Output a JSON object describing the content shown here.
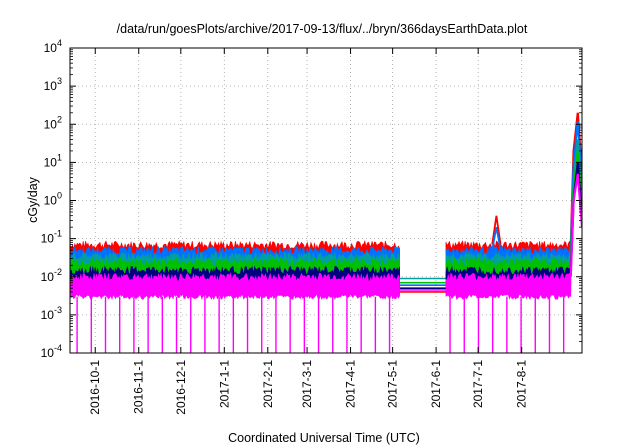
{
  "chart_data": {
    "type": "line",
    "title": "/data/run/goesPlots/archive/2017-09-13/flux/../bryn/366daysEarthData.plot",
    "xlabel": "Coordinated Universal Time (UTC)",
    "ylabel": "cGy/day",
    "x_range": [
      "2016-09-13",
      "2017-09-13"
    ],
    "xticks": [
      "2016-10-1",
      "2016-11-1",
      "2016-12-1",
      "2017-1-1",
      "2017-2-1",
      "2017-3-1",
      "2017-4-1",
      "2017-5-1",
      "2017-6-1",
      "2017-7-1",
      "2017-8-1"
    ],
    "y_scale": "log",
    "ylim": [
      0.0001,
      10000
    ],
    "yticks": [
      {
        "value": 0.0001,
        "base": "10",
        "exp": "-4"
      },
      {
        "value": 0.001,
        "base": "10",
        "exp": "-3"
      },
      {
        "value": 0.01,
        "base": "10",
        "exp": "-2"
      },
      {
        "value": 0.1,
        "base": "10",
        "exp": "-1"
      },
      {
        "value": 1,
        "base": "10",
        "exp": "0"
      },
      {
        "value": 10,
        "base": "10",
        "exp": "1"
      },
      {
        "value": 100,
        "base": "10",
        "exp": "2"
      },
      {
        "value": 1000,
        "base": "10",
        "exp": "3"
      },
      {
        "value": 10000,
        "base": "10",
        "exp": "4"
      }
    ],
    "grid": true,
    "data_gap": [
      "2017-05-06",
      "2017-06-08"
    ],
    "series": [
      {
        "color": "#ff0000",
        "baseline": 0.07,
        "gap_level": 0.004,
        "points": [
          [
            "2016-09-13",
            0.07
          ],
          [
            "2017-05-06",
            0.07
          ],
          [
            "2017-06-08",
            0.07
          ],
          [
            "2017-07-11",
            0.07
          ],
          [
            "2017-07-14",
            0.4
          ],
          [
            "2017-07-17",
            0.07
          ],
          [
            "2017-09-05",
            0.07
          ],
          [
            "2017-09-07",
            20
          ],
          [
            "2017-09-10",
            200
          ],
          [
            "2017-09-13",
            5
          ]
        ]
      },
      {
        "color": "#0072ff",
        "baseline": 0.05,
        "gap_level": 0.006,
        "points": [
          [
            "2016-09-13",
            0.05
          ],
          [
            "2017-05-06",
            0.05
          ],
          [
            "2017-06-08",
            0.05
          ],
          [
            "2017-07-11",
            0.05
          ],
          [
            "2017-07-14",
            0.2
          ],
          [
            "2017-07-17",
            0.05
          ],
          [
            "2017-09-05",
            0.05
          ],
          [
            "2017-09-07",
            8
          ],
          [
            "2017-09-10",
            120
          ],
          [
            "2017-09-13",
            3
          ]
        ]
      },
      {
        "color": "#00a0a0",
        "baseline": 0.035,
        "gap_level": 0.009,
        "points": [
          [
            "2016-09-13",
            0.035
          ],
          [
            "2017-05-06",
            0.035
          ],
          [
            "2017-06-08",
            0.035
          ],
          [
            "2017-09-05",
            0.035
          ],
          [
            "2017-09-07",
            3
          ],
          [
            "2017-09-10",
            40
          ],
          [
            "2017-09-13",
            1
          ]
        ]
      },
      {
        "color": "#00c000",
        "baseline": 0.025,
        "gap_level": 0.007,
        "points": [
          [
            "2016-09-13",
            0.025
          ],
          [
            "2017-05-06",
            0.025
          ],
          [
            "2017-06-08",
            0.025
          ],
          [
            "2017-09-05",
            0.025
          ],
          [
            "2017-09-07",
            2
          ],
          [
            "2017-09-10",
            20
          ],
          [
            "2017-09-13",
            0.5
          ]
        ]
      },
      {
        "color": "#000080",
        "baseline": 0.015,
        "gap_level": 0.005,
        "points": [
          [
            "2016-09-13",
            0.015
          ],
          [
            "2017-05-06",
            0.015
          ],
          [
            "2017-06-08",
            0.015
          ],
          [
            "2017-09-05",
            0.015
          ],
          [
            "2017-09-07",
            1
          ],
          [
            "2017-09-10",
            10
          ],
          [
            "2017-09-13",
            0.3
          ]
        ]
      },
      {
        "color": "#ff00ff",
        "baseline": 0.01,
        "gap_level": 0.0045,
        "low_band": 0.003,
        "dropouts": 32,
        "points": [
          [
            "2016-09-13",
            0.01
          ],
          [
            "2017-05-06",
            0.01
          ],
          [
            "2017-06-08",
            0.01
          ],
          [
            "2017-09-05",
            0.01
          ],
          [
            "2017-09-07",
            1
          ],
          [
            "2017-09-10",
            5
          ],
          [
            "2017-09-13",
            0.2
          ]
        ]
      }
    ]
  }
}
